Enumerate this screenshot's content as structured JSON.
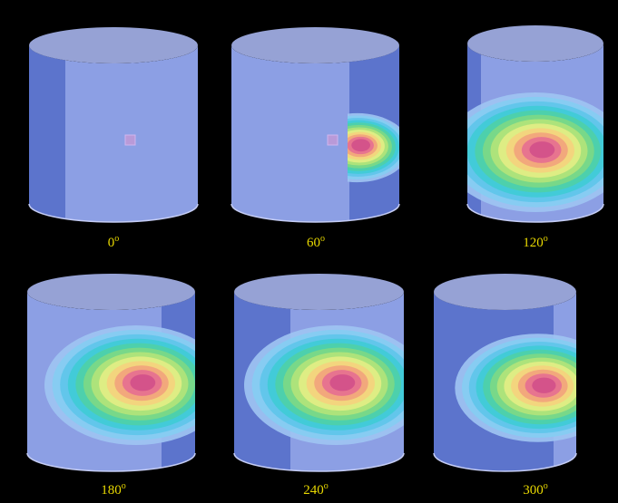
{
  "panels": [
    {
      "number": "0",
      "sup": "o"
    },
    {
      "number": "60",
      "sup": "o"
    },
    {
      "number": "120",
      "sup": "o"
    },
    {
      "number": "180",
      "sup": "o"
    },
    {
      "number": "240",
      "sup": "o"
    },
    {
      "number": "300",
      "sup": "o"
    }
  ]
}
